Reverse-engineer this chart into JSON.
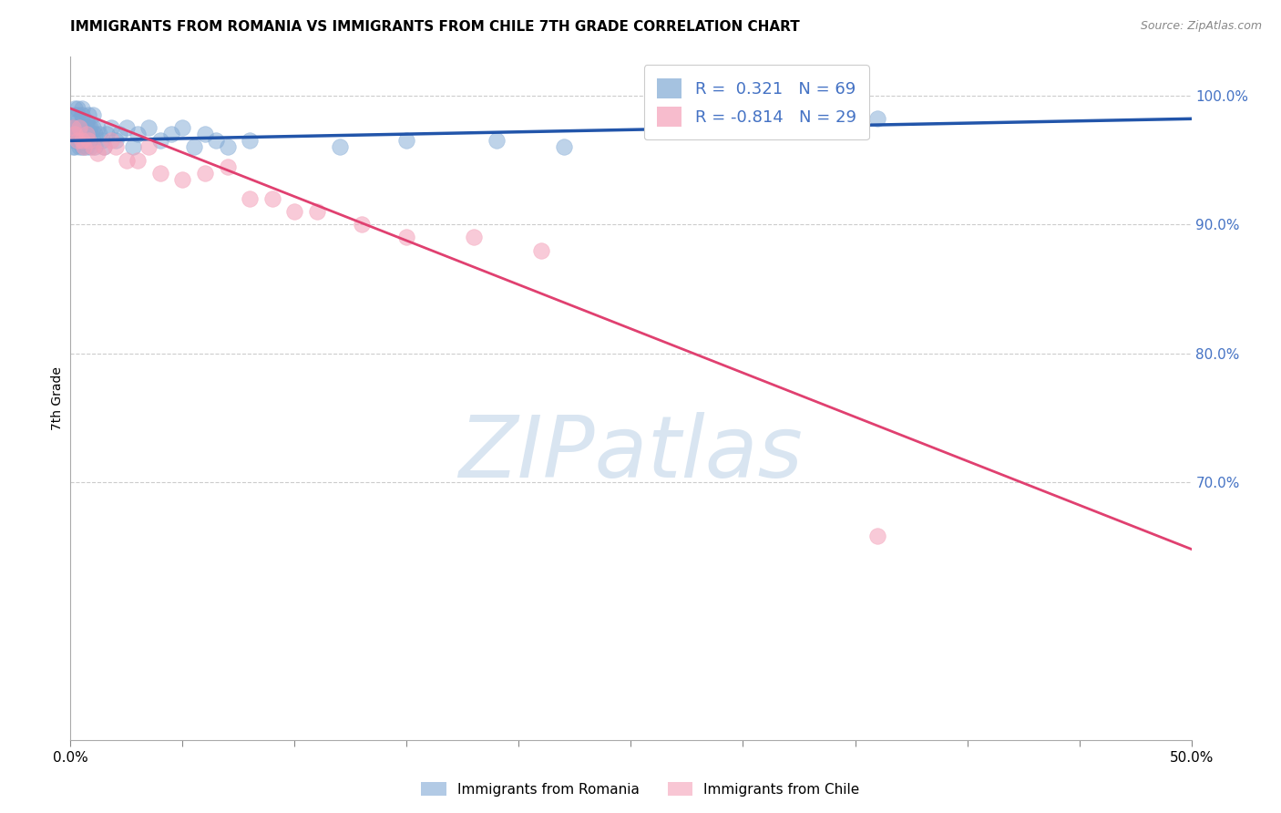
{
  "title": "IMMIGRANTS FROM ROMANIA VS IMMIGRANTS FROM CHILE 7TH GRADE CORRELATION CHART",
  "source": "Source: ZipAtlas.com",
  "ylabel_left": "7th Grade",
  "xlim": [
    0.0,
    0.5
  ],
  "ylim": [
    0.5,
    1.03
  ],
  "xticks": [
    0.0,
    0.05,
    0.1,
    0.15,
    0.2,
    0.25,
    0.3,
    0.35,
    0.4,
    0.45,
    0.5
  ],
  "xticklabels_show": {
    "0.0": "0.0%",
    "0.50": "50.0%"
  },
  "yticks_right": [
    0.7,
    0.8,
    0.9,
    1.0
  ],
  "ytick_right_labels": [
    "70.0%",
    "80.0%",
    "90.0%",
    "100.0%"
  ],
  "right_axis_color": "#4472c4",
  "grid_color": "#cccccc",
  "watermark": "ZIPatlas",
  "watermark_color": "#c0d4e8",
  "romania_color": "#7fa8d4",
  "romania_color_line": "#2255aa",
  "chile_color": "#f4a0b8",
  "chile_color_line": "#e04070",
  "romania_R": 0.321,
  "romania_N": 69,
  "chile_R": -0.814,
  "chile_N": 29,
  "romania_scatter_x": [
    0.001,
    0.001,
    0.001,
    0.002,
    0.002,
    0.002,
    0.002,
    0.002,
    0.002,
    0.003,
    0.003,
    0.003,
    0.003,
    0.004,
    0.004,
    0.004,
    0.004,
    0.005,
    0.005,
    0.005,
    0.005,
    0.005,
    0.006,
    0.006,
    0.006,
    0.007,
    0.007,
    0.007,
    0.008,
    0.008,
    0.008,
    0.009,
    0.009,
    0.009,
    0.01,
    0.01,
    0.01,
    0.011,
    0.011,
    0.012,
    0.013,
    0.014,
    0.015,
    0.016,
    0.018,
    0.02,
    0.022,
    0.025,
    0.028,
    0.03,
    0.035,
    0.04,
    0.045,
    0.05,
    0.055,
    0.06,
    0.065,
    0.07,
    0.08,
    0.12,
    0.15,
    0.19,
    0.22,
    0.28,
    0.3,
    0.32,
    0.33,
    0.34,
    0.36
  ],
  "romania_scatter_y": [
    0.975,
    0.97,
    0.96,
    0.985,
    0.99,
    0.975,
    0.97,
    0.965,
    0.96,
    0.98,
    0.975,
    0.985,
    0.99,
    0.975,
    0.97,
    0.965,
    0.96,
    0.98,
    0.975,
    0.985,
    0.99,
    0.96,
    0.975,
    0.97,
    0.96,
    0.98,
    0.975,
    0.96,
    0.985,
    0.975,
    0.965,
    0.96,
    0.975,
    0.97,
    0.965,
    0.975,
    0.985,
    0.96,
    0.97,
    0.975,
    0.97,
    0.965,
    0.96,
    0.97,
    0.975,
    0.965,
    0.97,
    0.975,
    0.96,
    0.97,
    0.975,
    0.965,
    0.97,
    0.975,
    0.96,
    0.97,
    0.965,
    0.96,
    0.965,
    0.96,
    0.965,
    0.965,
    0.96,
    0.975,
    0.978,
    0.978,
    0.982,
    0.98,
    0.982
  ],
  "chile_scatter_x": [
    0.001,
    0.002,
    0.003,
    0.004,
    0.005,
    0.006,
    0.007,
    0.008,
    0.01,
    0.012,
    0.015,
    0.018,
    0.02,
    0.025,
    0.03,
    0.035,
    0.04,
    0.05,
    0.06,
    0.07,
    0.08,
    0.09,
    0.1,
    0.11,
    0.13,
    0.15,
    0.18,
    0.21,
    0.36
  ],
  "chile_scatter_y": [
    0.975,
    0.97,
    0.965,
    0.975,
    0.965,
    0.96,
    0.97,
    0.965,
    0.96,
    0.955,
    0.96,
    0.965,
    0.96,
    0.95,
    0.95,
    0.96,
    0.94,
    0.935,
    0.94,
    0.945,
    0.92,
    0.92,
    0.91,
    0.91,
    0.9,
    0.89,
    0.89,
    0.88,
    0.658
  ],
  "romania_line_x": [
    0.0,
    0.5
  ],
  "romania_line_y": [
    0.965,
    0.982
  ],
  "chile_line_x": [
    0.0,
    0.5
  ],
  "chile_line_y": [
    0.99,
    0.648
  ]
}
